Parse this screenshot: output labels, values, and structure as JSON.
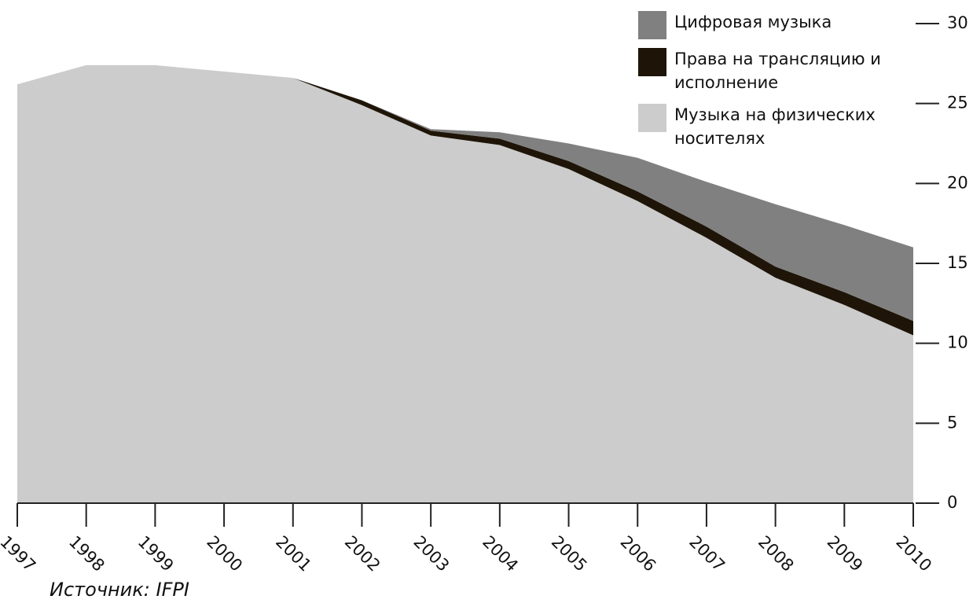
{
  "chart_data": {
    "type": "stacked_area",
    "categories": [
      "1997",
      "1998",
      "1999",
      "2000",
      "2001",
      "2002",
      "2003",
      "2004",
      "2005",
      "2006",
      "2007",
      "2008",
      "2009",
      "2010"
    ],
    "series": [
      {
        "name": "Музыка на физических носителях",
        "color": "#cccccc",
        "values": [
          26.2,
          27.4,
          27.4,
          27.0,
          26.6,
          24.9,
          23.0,
          22.4,
          20.9,
          18.9,
          16.6,
          14.1,
          12.4,
          10.5
        ]
      },
      {
        "name": "Права на трансляцию и исполнение",
        "color": "#1e1508",
        "values": [
          0,
          0,
          0,
          0,
          0,
          0.3,
          0.3,
          0.4,
          0.5,
          0.6,
          0.7,
          0.7,
          0.8,
          0.9
        ]
      },
      {
        "name": "Цифровая музыка",
        "color": "#808080",
        "values": [
          0,
          0,
          0,
          0,
          0,
          0,
          0.1,
          0.4,
          1.1,
          2.1,
          2.8,
          3.9,
          4.2,
          4.6
        ]
      }
    ],
    "ylim": [
      0,
      30
    ],
    "yticks": [
      0,
      5,
      10,
      15,
      20,
      25,
      30
    ],
    "source": "Источник: IFPI"
  }
}
